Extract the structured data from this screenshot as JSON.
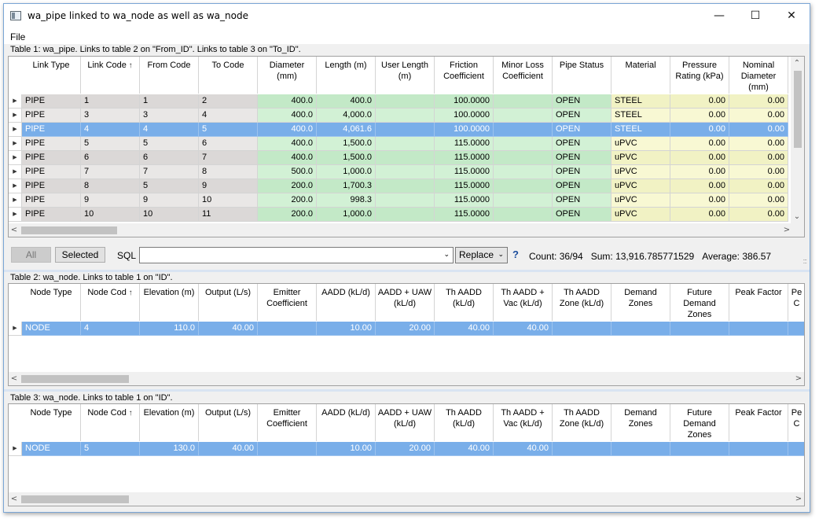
{
  "window": {
    "title": "wa_pipe linked to wa_node as well as wa_node",
    "controls": {
      "minimize": "—",
      "maximize": "☐",
      "close": "✕"
    }
  },
  "menu": {
    "file": "File"
  },
  "table1": {
    "caption": "Table 1: wa_pipe. Links to table 2 on \"From_ID\". Links to table 3 on \"To_ID\".",
    "columns": [
      {
        "label": "Link Type",
        "tint": "g",
        "align": "l"
      },
      {
        "label": "Link Code",
        "tint": "g",
        "align": "l",
        "sorted": true
      },
      {
        "label": "From Code",
        "tint": "g",
        "align": "l"
      },
      {
        "label": "To Code",
        "tint": "g",
        "align": "l"
      },
      {
        "label": "Diameter\n(mm)",
        "tint": "n",
        "align": "r"
      },
      {
        "label": "Length (m)",
        "tint": "n",
        "align": "r"
      },
      {
        "label": "User Length\n(m)",
        "tint": "n",
        "align": "r"
      },
      {
        "label": "Friction\nCoefficient",
        "tint": "n",
        "align": "r"
      },
      {
        "label": "Minor Loss\nCoefficient",
        "tint": "n",
        "align": "r"
      },
      {
        "label": "Pipe Status",
        "tint": "n",
        "align": "l"
      },
      {
        "label": "Material",
        "tint": "y",
        "align": "l"
      },
      {
        "label": "Pressure\nRating (kPa)",
        "tint": "y",
        "align": "r"
      },
      {
        "label": "Nominal\nDiameter\n(mm)",
        "tint": "y",
        "align": "r"
      }
    ],
    "rows": [
      [
        "PIPE",
        "1",
        "1",
        "2",
        "400.0",
        "400.0",
        "",
        "100.0000",
        "",
        "OPEN",
        "STEEL",
        "0.00",
        "0.00"
      ],
      [
        "PIPE",
        "3",
        "3",
        "4",
        "400.0",
        "4,000.0",
        "",
        "100.0000",
        "",
        "OPEN",
        "STEEL",
        "0.00",
        "0.00"
      ],
      [
        "PIPE",
        "4",
        "4",
        "5",
        "400.0",
        "4,061.6",
        "",
        "100.0000",
        "",
        "OPEN",
        "STEEL",
        "0.00",
        "0.00"
      ],
      [
        "PIPE",
        "5",
        "5",
        "6",
        "400.0",
        "1,500.0",
        "",
        "115.0000",
        "",
        "OPEN",
        "uPVC",
        "0.00",
        "0.00"
      ],
      [
        "PIPE",
        "6",
        "6",
        "7",
        "400.0",
        "1,500.0",
        "",
        "115.0000",
        "",
        "OPEN",
        "uPVC",
        "0.00",
        "0.00"
      ],
      [
        "PIPE",
        "7",
        "7",
        "8",
        "500.0",
        "1,000.0",
        "",
        "115.0000",
        "",
        "OPEN",
        "uPVC",
        "0.00",
        "0.00"
      ],
      [
        "PIPE",
        "8",
        "5",
        "9",
        "200.0",
        "1,700.3",
        "",
        "115.0000",
        "",
        "OPEN",
        "uPVC",
        "0.00",
        "0.00"
      ],
      [
        "PIPE",
        "9",
        "9",
        "10",
        "200.0",
        "998.3",
        "",
        "115.0000",
        "",
        "OPEN",
        "uPVC",
        "0.00",
        "0.00"
      ],
      [
        "PIPE",
        "10",
        "10",
        "11",
        "200.0",
        "1,000.0",
        "",
        "115.0000",
        "",
        "OPEN",
        "uPVC",
        "0.00",
        "0.00"
      ]
    ],
    "selected_row": 2
  },
  "toolbar": {
    "all": "All",
    "selected": "Selected",
    "sql_label": "SQL",
    "sql_value": "",
    "replace": "Replace",
    "help": "?",
    "count": "Count: 36/94",
    "sum": "Sum: 13,916.785771529",
    "average": "Average: 386.57"
  },
  "node_columns": [
    {
      "label": "Node Type",
      "tint": "w",
      "align": "l"
    },
    {
      "label": "Node Cod",
      "tint": "w",
      "align": "l",
      "sorted": true
    },
    {
      "label": "Elevation (m)",
      "tint": "w",
      "align": "r"
    },
    {
      "label": "Output (L/s)",
      "tint": "w",
      "align": "r"
    },
    {
      "label": "Emitter\nCoefficient",
      "tint": "w",
      "align": "r"
    },
    {
      "label": "AADD (kL/d)",
      "tint": "w",
      "align": "r"
    },
    {
      "label": "AADD + UAW\n(kL/d)",
      "tint": "w",
      "align": "r"
    },
    {
      "label": "Th AADD\n(kL/d)",
      "tint": "w",
      "align": "r"
    },
    {
      "label": "Th AADD +\nVac (kL/d)",
      "tint": "w",
      "align": "r"
    },
    {
      "label": "Th AADD\nZone (kL/d)",
      "tint": "w",
      "align": "r"
    },
    {
      "label": "Demand\nZones",
      "tint": "w",
      "align": "l"
    },
    {
      "label": "Future\nDemand\nZones",
      "tint": "w",
      "align": "l"
    },
    {
      "label": "Peak Factor",
      "tint": "w",
      "align": "r"
    },
    {
      "label": "Pe\nC",
      "tint": "w",
      "align": "r"
    }
  ],
  "table2": {
    "caption": "Table 2: wa_node. Links to table 1 on \"ID\".",
    "rows": [
      [
        "NODE",
        "4",
        "110.0",
        "40.00",
        "",
        "10.00",
        "20.00",
        "40.00",
        "40.00",
        "",
        "",
        "",
        "",
        ""
      ]
    ],
    "selected_row": 0
  },
  "table3": {
    "caption": "Table 3: wa_node. Links to table 1 on \"ID\".",
    "rows": [
      [
        "NODE",
        "5",
        "130.0",
        "40.00",
        "",
        "10.00",
        "20.00",
        "40.00",
        "40.00",
        "",
        "",
        "",
        "",
        ""
      ]
    ],
    "selected_row": 0
  }
}
